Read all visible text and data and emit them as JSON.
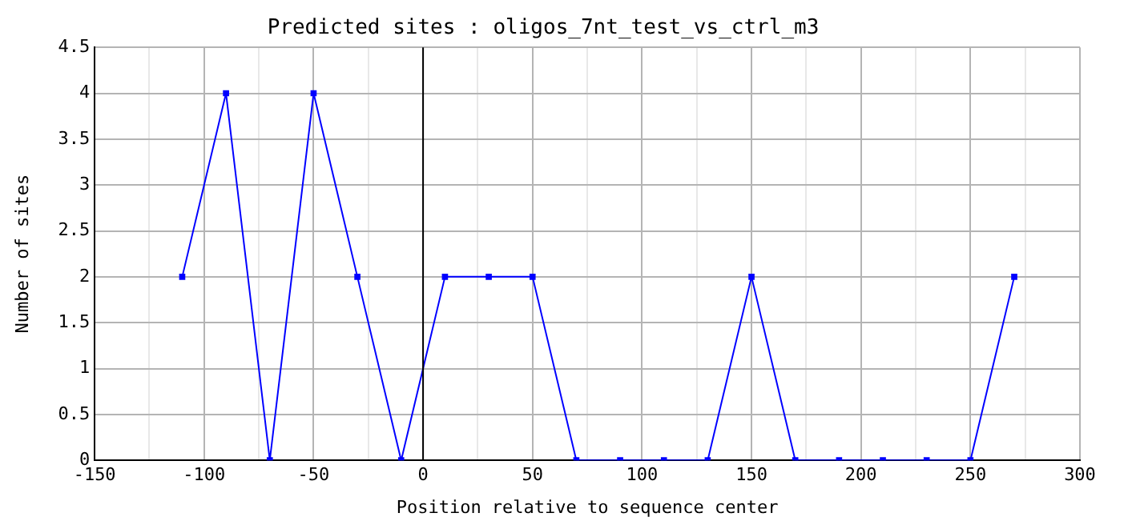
{
  "chart_data": {
    "type": "line",
    "title": "Predicted sites : oligos_7nt_test_vs_ctrl_m3",
    "xlabel": "Position relative to sequence center",
    "ylabel": "Number of sites",
    "x": [
      -110,
      -90,
      -70,
      -50,
      -30,
      -10,
      10,
      30,
      50,
      70,
      90,
      110,
      130,
      150,
      170,
      190,
      210,
      230,
      250,
      270
    ],
    "series": [
      {
        "color": "#0000ff",
        "values": [
          2,
          4,
          0,
          4,
          2,
          0,
          2,
          2,
          2,
          0,
          0,
          0,
          0,
          2,
          0,
          0,
          0,
          0,
          0,
          2
        ]
      }
    ],
    "xlim": [
      -150,
      300
    ],
    "xticks": [
      -150,
      {
        "value": -125,
        "label": null
      },
      -100,
      {
        "value": -75,
        "label": null
      },
      -50,
      {
        "value": -25,
        "label": null
      },
      0,
      {
        "value": 25,
        "label": null
      },
      50,
      {
        "value": 75,
        "label": null
      },
      100,
      {
        "value": 125,
        "label": null
      },
      150,
      {
        "value": 175,
        "label": null
      },
      200,
      {
        "value": 225,
        "label": null
      },
      250,
      {
        "value": 275,
        "label": null
      },
      300
    ],
    "ylim": [
      0,
      4.5
    ],
    "yticks": [
      0,
      0.5,
      1,
      1.5,
      2,
      2.5,
      3,
      3.5,
      4,
      4.5
    ],
    "ref_lines": [
      {
        "axis": "x",
        "value": 0,
        "color": "#000000"
      }
    ],
    "grid": true,
    "legend": false,
    "marker": "square",
    "line_style": "solid"
  }
}
